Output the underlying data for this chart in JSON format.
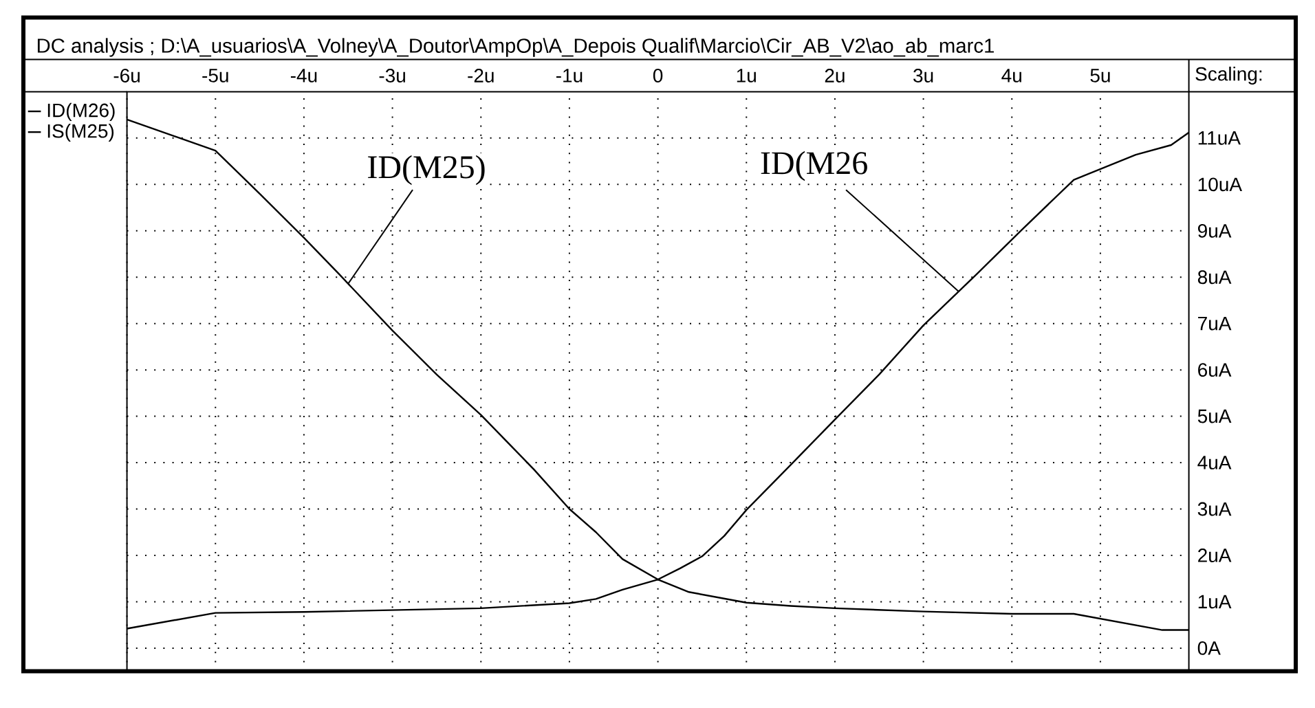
{
  "chart_data": {
    "type": "line",
    "title": "DC analysis ; D:\\A_usuarios\\A_Volney\\A_Doutor\\AmpOp\\A_Depois Qualif\\Marcio\\Cir_AB_V2\\ao_ab_marc1",
    "ylabel": "Scaling:",
    "xlim": [
      -6,
      6
    ],
    "ylim": [
      -0.5,
      12
    ],
    "xticks": [
      {
        "value": -6,
        "label": "-6u"
      },
      {
        "value": -5,
        "label": "-5u"
      },
      {
        "value": -4,
        "label": "-4u"
      },
      {
        "value": -3,
        "label": "-3u"
      },
      {
        "value": -2,
        "label": "-2u"
      },
      {
        "value": -1,
        "label": "-1u"
      },
      {
        "value": 0,
        "label": "0"
      },
      {
        "value": 1,
        "label": "1u"
      },
      {
        "value": 2,
        "label": "2u"
      },
      {
        "value": 3,
        "label": "3u"
      },
      {
        "value": 4,
        "label": "4u"
      },
      {
        "value": 5,
        "label": "5u"
      }
    ],
    "yticks": [
      {
        "value": 0,
        "label": "0A"
      },
      {
        "value": 1,
        "label": "1uA"
      },
      {
        "value": 2,
        "label": "2uA"
      },
      {
        "value": 3,
        "label": "3uA"
      },
      {
        "value": 4,
        "label": "4uA"
      },
      {
        "value": 5,
        "label": "5uA"
      },
      {
        "value": 6,
        "label": "6uA"
      },
      {
        "value": 7,
        "label": "7uA"
      },
      {
        "value": 8,
        "label": "8uA"
      },
      {
        "value": 9,
        "label": "9uA"
      },
      {
        "value": 10,
        "label": "10uA"
      },
      {
        "value": 11,
        "label": "11uA"
      }
    ],
    "grid": true,
    "legend": "top left",
    "series": [
      {
        "name": "ID(M26)",
        "color": "#000000",
        "x": [
          -6,
          -5,
          -4,
          -3,
          -2,
          -1,
          -0.7,
          -0.4,
          0,
          0.25,
          0.5,
          0.75,
          1,
          1.5,
          2,
          2.5,
          3,
          3.6,
          4.1,
          4.7,
          5.4,
          5.8,
          6
        ],
        "values": [
          0.42,
          0.76,
          0.78,
          0.82,
          0.86,
          0.97,
          1.06,
          1.26,
          1.48,
          1.72,
          1.98,
          2.42,
          2.98,
          3.95,
          4.93,
          5.9,
          6.96,
          8.06,
          9.0,
          10.1,
          10.64,
          10.85,
          11.12
        ]
      },
      {
        "name": "IS(M25)",
        "color": "#000000",
        "x": [
          -6,
          -5,
          -4.5,
          -4,
          -3.6,
          -3,
          -2.5,
          -2,
          -1.4,
          -1,
          -0.7,
          -0.4,
          0,
          0.35,
          1,
          1.5,
          2,
          3,
          4,
          4.7,
          5.7,
          6
        ],
        "values": [
          11.4,
          10.73,
          9.8,
          8.85,
          8.06,
          6.85,
          5.9,
          5.03,
          3.85,
          3.0,
          2.5,
          1.92,
          1.48,
          1.21,
          0.98,
          0.91,
          0.86,
          0.79,
          0.74,
          0.74,
          0.39,
          0.39
        ]
      }
    ],
    "annotations": [
      {
        "text": "ID(M25)",
        "x": -3.5,
        "y": 7.86
      },
      {
        "text": "ID(M26",
        "x": 3.4,
        "y": 7.69
      }
    ]
  }
}
